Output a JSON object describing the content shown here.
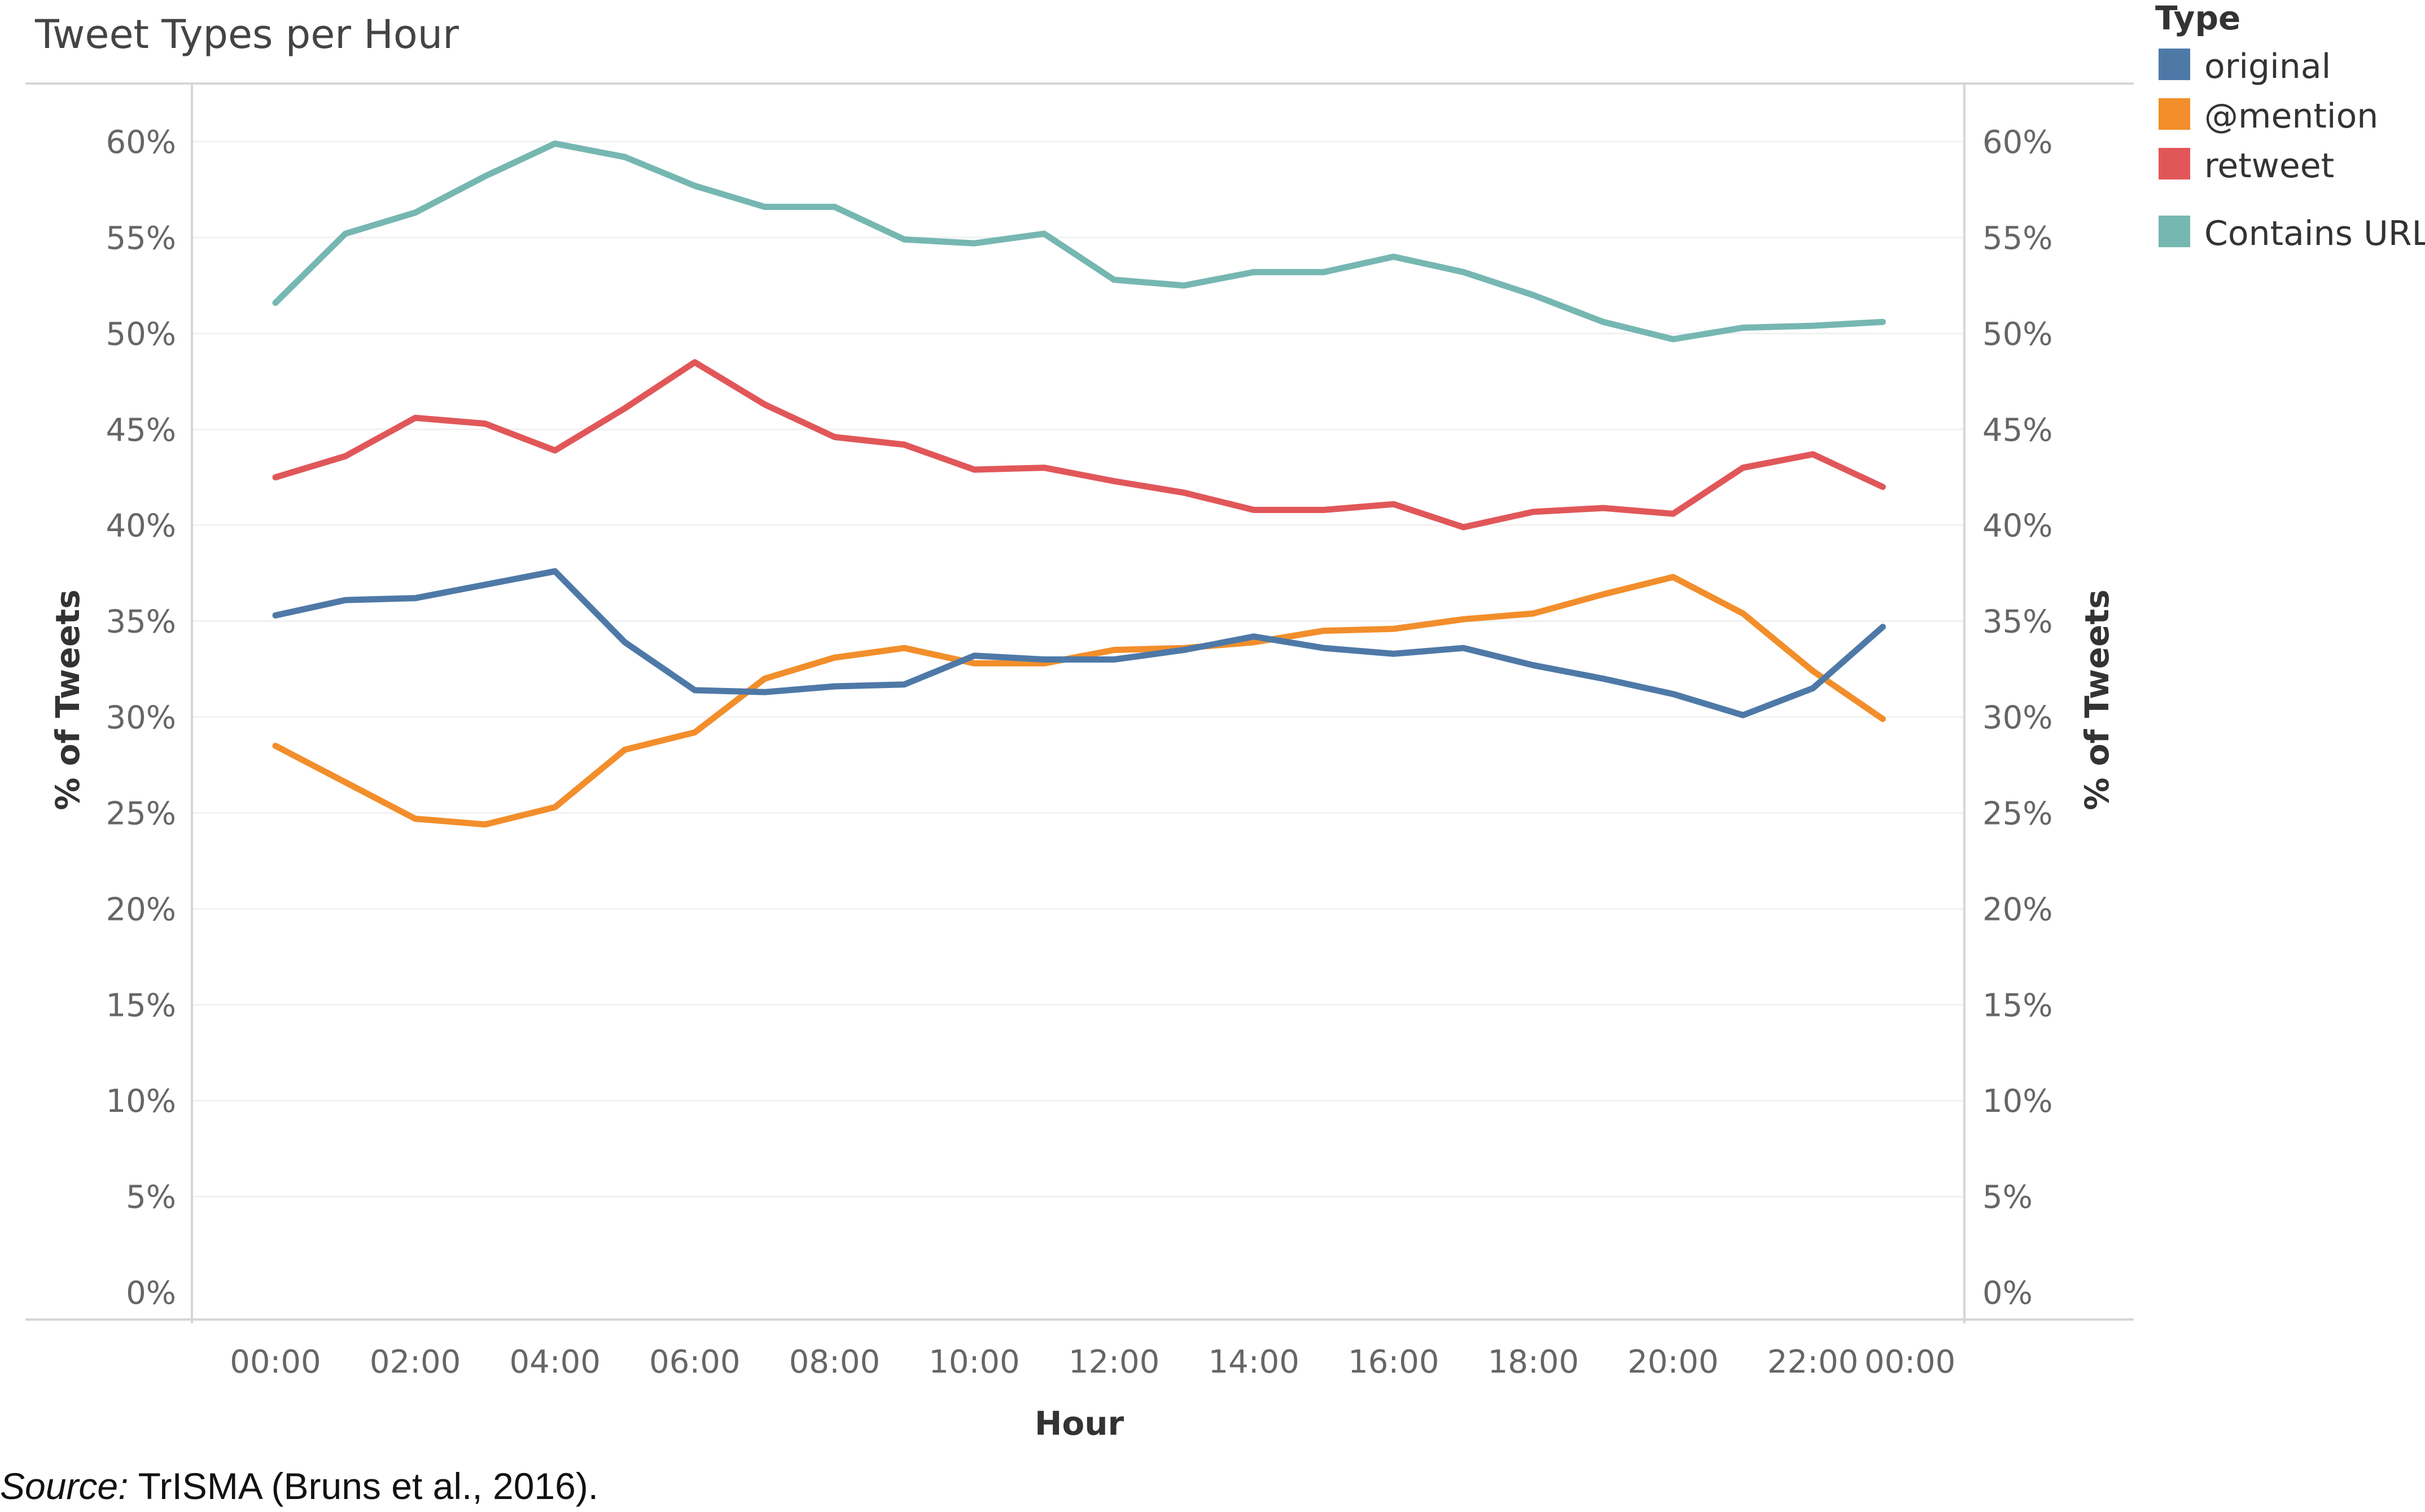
{
  "chart_data": {
    "type": "line",
    "title": "Tweet Types per Hour",
    "xlabel": "Hour",
    "ylabel": "% of Tweets",
    "ylabel_right": "% of Tweets",
    "ylim": [
      0,
      60
    ],
    "yticks": [
      "0%",
      "5%",
      "10%",
      "15%",
      "20%",
      "25%",
      "30%",
      "35%",
      "40%",
      "45%",
      "50%",
      "55%",
      "60%"
    ],
    "xticks": [
      "00:00",
      "02:00",
      "04:00",
      "06:00",
      "08:00",
      "10:00",
      "12:00",
      "14:00",
      "16:00",
      "18:00",
      "20:00",
      "22:00",
      "00:00"
    ],
    "x": [
      0,
      1,
      2,
      3,
      4,
      5,
      6,
      7,
      8,
      9,
      10,
      11,
      12,
      13,
      14,
      15,
      16,
      17,
      18,
      19,
      20,
      21,
      22,
      23
    ],
    "legend_title": "Type",
    "legend_position": "top-right",
    "series": [
      {
        "name": "original",
        "color": "#4e79a7",
        "values": [
          35.3,
          36.1,
          36.2,
          36.9,
          37.6,
          33.9,
          31.4,
          31.3,
          31.6,
          31.7,
          33.2,
          33.0,
          33.0,
          33.5,
          34.2,
          33.6,
          33.3,
          33.6,
          32.7,
          32.0,
          31.2,
          30.1,
          31.5,
          34.7
        ]
      },
      {
        "name": "@mention",
        "color": "#f28e2b",
        "values": [
          28.5,
          26.6,
          24.7,
          24.4,
          25.3,
          28.3,
          29.2,
          32.0,
          33.1,
          33.6,
          32.8,
          32.8,
          33.5,
          33.6,
          33.9,
          34.5,
          34.6,
          35.1,
          35.4,
          36.4,
          37.3,
          35.4,
          32.4,
          29.9
        ]
      },
      {
        "name": "retweet",
        "color": "#e15759",
        "values": [
          42.5,
          43.6,
          45.6,
          45.3,
          43.9,
          46.1,
          48.5,
          46.3,
          44.6,
          44.2,
          42.9,
          43.0,
          42.3,
          41.7,
          40.8,
          40.8,
          41.1,
          39.9,
          40.7,
          40.9,
          40.6,
          43.0,
          43.7,
          42.0
        ]
      },
      {
        "name": "Contains URL",
        "color": "#76b7b2",
        "values": [
          51.6,
          55.2,
          56.3,
          58.2,
          59.9,
          59.2,
          57.7,
          56.6,
          56.6,
          54.9,
          54.7,
          55.2,
          52.8,
          52.5,
          53.2,
          53.2,
          54.0,
          53.2,
          52.0,
          50.6,
          49.7,
          50.3,
          50.4,
          50.6
        ]
      }
    ]
  },
  "source": {
    "label": "Source:",
    "text": " TrISMA (Bruns et al., 2016)."
  }
}
